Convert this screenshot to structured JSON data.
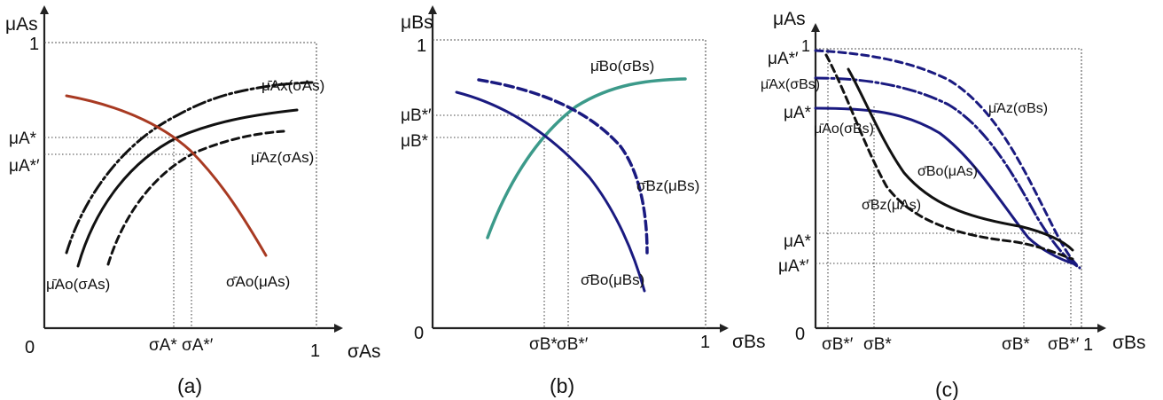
{
  "colors": {
    "black": "#111111",
    "navy": "#1a1a80",
    "red": "#a83a22",
    "teal": "#3c9a8a"
  },
  "panel_a": {
    "caption": "(a)",
    "y_axis": "μAs",
    "x_axis": "σAs",
    "origin": "0",
    "x_one": "1",
    "y_one": "1",
    "y_marks": [
      "μA*",
      "μA*′"
    ],
    "x_marks": [
      "σA*",
      "σA*′"
    ],
    "curves": [
      {
        "label": "μ̄Ax(σAs)",
        "color": "black",
        "style": "dash-dot"
      },
      {
        "label": "μ̄Ao(σAs)",
        "color": "black",
        "style": "solid"
      },
      {
        "label": "μ̄Az(σAs)",
        "color": "black",
        "style": "dashed"
      },
      {
        "label": "σ̄Ao(μAs)",
        "color": "red",
        "style": "solid"
      }
    ]
  },
  "panel_b": {
    "caption": "(b)",
    "y_axis": "μBs",
    "x_axis": "σBs",
    "origin": "0",
    "x_one": "1",
    "y_one": "1",
    "y_marks": [
      "μB*′",
      "μB*"
    ],
    "x_marks": [
      "σB*",
      "σB*′"
    ],
    "curves": [
      {
        "label": "μ̄Bo(σBs)",
        "color": "teal",
        "style": "solid"
      },
      {
        "label": "σ̄Bz(μBs)",
        "color": "navy",
        "style": "dashed"
      },
      {
        "label": "σ̄Bo(μBs)",
        "color": "navy",
        "style": "solid"
      }
    ]
  },
  "panel_c": {
    "caption": "(c)",
    "y_axis": "μAs",
    "x_axis": "σBs",
    "origin": "0",
    "x_one": "1",
    "y_one": "1",
    "y_marks_top": [
      "μA*′",
      "μA*"
    ],
    "y_marks_bottom": [
      "μA*",
      "μA*′"
    ],
    "x_marks": [
      "σB*′",
      "σB*",
      "σB*",
      "σB*′"
    ],
    "curves": [
      {
        "label": "μ̄Ax(σBs)",
        "color": "navy",
        "style": "dash-dot"
      },
      {
        "label": "μ̄Az(σBs)",
        "color": "navy",
        "style": "dashed"
      },
      {
        "label": "μ̄Ao(σBs)",
        "color": "navy",
        "style": "solid"
      },
      {
        "label": "σ̄Bo(μAs)",
        "color": "black",
        "style": "solid"
      },
      {
        "label": "σ̄Bz(μAs)",
        "color": "black",
        "style": "dashed"
      }
    ]
  }
}
